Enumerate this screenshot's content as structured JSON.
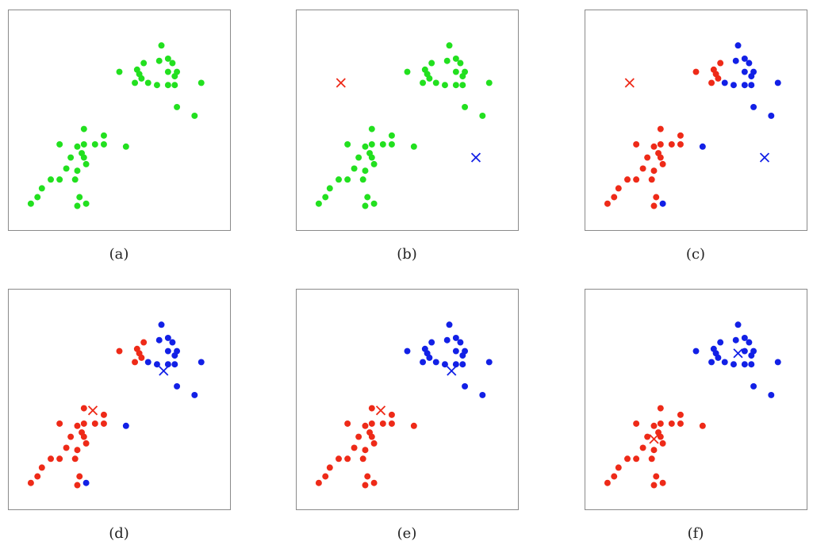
{
  "colors": {
    "green": "#22e01f",
    "red": "#ee2a18",
    "blue": "#1220e6"
  },
  "chart_data": [
    {
      "type": "scatter",
      "label": "(a)",
      "xlim": [
        0,
        10
      ],
      "ylim": [
        0,
        10
      ],
      "points": [
        [
          5.0,
          7.2,
          "green"
        ],
        [
          5.8,
          7.3,
          "green"
        ],
        [
          5.9,
          7.1,
          "green"
        ],
        [
          6.0,
          6.9,
          "green"
        ],
        [
          5.7,
          6.7,
          "green"
        ],
        [
          6.1,
          7.6,
          "green"
        ],
        [
          6.8,
          7.7,
          "green"
        ],
        [
          7.2,
          7.8,
          "green"
        ],
        [
          7.4,
          7.6,
          "green"
        ],
        [
          7.2,
          7.2,
          "green"
        ],
        [
          7.6,
          7.2,
          "green"
        ],
        [
          6.9,
          8.4,
          "green"
        ],
        [
          7.5,
          7.0,
          "green"
        ],
        [
          6.7,
          6.6,
          "green"
        ],
        [
          7.2,
          6.6,
          "green"
        ],
        [
          7.5,
          6.6,
          "green"
        ],
        [
          6.3,
          6.7,
          "green"
        ],
        [
          8.7,
          6.7,
          "green"
        ],
        [
          7.6,
          5.6,
          "green"
        ],
        [
          8.4,
          5.2,
          "green"
        ],
        [
          3.4,
          4.6,
          "green"
        ],
        [
          2.3,
          3.9,
          "green"
        ],
        [
          3.1,
          3.8,
          "green"
        ],
        [
          3.4,
          3.9,
          "green"
        ],
        [
          3.3,
          3.5,
          "green"
        ],
        [
          4.3,
          4.3,
          "green"
        ],
        [
          4.3,
          3.9,
          "green"
        ],
        [
          3.9,
          3.9,
          "green"
        ],
        [
          3.4,
          3.3,
          "green"
        ],
        [
          2.8,
          3.3,
          "green"
        ],
        [
          3.5,
          3.0,
          "green"
        ],
        [
          2.6,
          2.8,
          "green"
        ],
        [
          3.1,
          2.7,
          "green"
        ],
        [
          3.0,
          2.3,
          "green"
        ],
        [
          2.3,
          2.3,
          "green"
        ],
        [
          1.9,
          2.3,
          "green"
        ],
        [
          1.5,
          1.9,
          "green"
        ],
        [
          1.3,
          1.5,
          "green"
        ],
        [
          1.0,
          1.2,
          "green"
        ],
        [
          3.2,
          1.5,
          "green"
        ],
        [
          3.5,
          1.2,
          "green"
        ],
        [
          3.1,
          1.1,
          "green"
        ],
        [
          5.3,
          3.8,
          "green"
        ]
      ],
      "centroids": []
    },
    {
      "type": "scatter",
      "label": "(b)",
      "xlim": [
        0,
        10
      ],
      "ylim": [
        0,
        10
      ],
      "points": [
        [
          5.0,
          7.2,
          "green"
        ],
        [
          5.8,
          7.3,
          "green"
        ],
        [
          5.9,
          7.1,
          "green"
        ],
        [
          6.0,
          6.9,
          "green"
        ],
        [
          5.7,
          6.7,
          "green"
        ],
        [
          6.1,
          7.6,
          "green"
        ],
        [
          6.8,
          7.7,
          "green"
        ],
        [
          7.2,
          7.8,
          "green"
        ],
        [
          7.4,
          7.6,
          "green"
        ],
        [
          7.2,
          7.2,
          "green"
        ],
        [
          7.6,
          7.2,
          "green"
        ],
        [
          6.9,
          8.4,
          "green"
        ],
        [
          7.5,
          7.0,
          "green"
        ],
        [
          6.7,
          6.6,
          "green"
        ],
        [
          7.2,
          6.6,
          "green"
        ],
        [
          7.5,
          6.6,
          "green"
        ],
        [
          6.3,
          6.7,
          "green"
        ],
        [
          8.7,
          6.7,
          "green"
        ],
        [
          7.6,
          5.6,
          "green"
        ],
        [
          8.4,
          5.2,
          "green"
        ],
        [
          3.4,
          4.6,
          "green"
        ],
        [
          2.3,
          3.9,
          "green"
        ],
        [
          3.1,
          3.8,
          "green"
        ],
        [
          3.4,
          3.9,
          "green"
        ],
        [
          3.3,
          3.5,
          "green"
        ],
        [
          4.3,
          4.3,
          "green"
        ],
        [
          4.3,
          3.9,
          "green"
        ],
        [
          3.9,
          3.9,
          "green"
        ],
        [
          3.4,
          3.3,
          "green"
        ],
        [
          2.8,
          3.3,
          "green"
        ],
        [
          3.5,
          3.0,
          "green"
        ],
        [
          2.6,
          2.8,
          "green"
        ],
        [
          3.1,
          2.7,
          "green"
        ],
        [
          3.0,
          2.3,
          "green"
        ],
        [
          2.3,
          2.3,
          "green"
        ],
        [
          1.9,
          2.3,
          "green"
        ],
        [
          1.5,
          1.9,
          "green"
        ],
        [
          1.3,
          1.5,
          "green"
        ],
        [
          1.0,
          1.2,
          "green"
        ],
        [
          3.2,
          1.5,
          "green"
        ],
        [
          3.5,
          1.2,
          "green"
        ],
        [
          3.1,
          1.1,
          "green"
        ],
        [
          5.3,
          3.8,
          "green"
        ]
      ],
      "centroids": [
        [
          2.0,
          6.7,
          "red"
        ],
        [
          8.1,
          3.3,
          "blue"
        ]
      ]
    },
    {
      "type": "scatter",
      "label": "(c)",
      "xlim": [
        0,
        10
      ],
      "ylim": [
        0,
        10
      ],
      "points": [
        [
          5.0,
          7.2,
          "red"
        ],
        [
          5.8,
          7.3,
          "red"
        ],
        [
          5.9,
          7.1,
          "red"
        ],
        [
          6.0,
          6.9,
          "red"
        ],
        [
          5.7,
          6.7,
          "red"
        ],
        [
          6.1,
          7.6,
          "red"
        ],
        [
          6.8,
          7.7,
          "blue"
        ],
        [
          7.2,
          7.8,
          "blue"
        ],
        [
          7.4,
          7.6,
          "blue"
        ],
        [
          7.2,
          7.2,
          "blue"
        ],
        [
          7.6,
          7.2,
          "blue"
        ],
        [
          6.9,
          8.4,
          "blue"
        ],
        [
          7.5,
          7.0,
          "blue"
        ],
        [
          6.7,
          6.6,
          "blue"
        ],
        [
          7.2,
          6.6,
          "blue"
        ],
        [
          7.5,
          6.6,
          "blue"
        ],
        [
          6.3,
          6.7,
          "blue"
        ],
        [
          8.7,
          6.7,
          "blue"
        ],
        [
          7.6,
          5.6,
          "blue"
        ],
        [
          8.4,
          5.2,
          "blue"
        ],
        [
          3.4,
          4.6,
          "red"
        ],
        [
          2.3,
          3.9,
          "red"
        ],
        [
          3.1,
          3.8,
          "red"
        ],
        [
          3.4,
          3.9,
          "red"
        ],
        [
          3.3,
          3.5,
          "red"
        ],
        [
          4.3,
          4.3,
          "red"
        ],
        [
          4.3,
          3.9,
          "red"
        ],
        [
          3.9,
          3.9,
          "red"
        ],
        [
          3.4,
          3.3,
          "red"
        ],
        [
          2.8,
          3.3,
          "red"
        ],
        [
          3.5,
          3.0,
          "red"
        ],
        [
          2.6,
          2.8,
          "red"
        ],
        [
          3.1,
          2.7,
          "red"
        ],
        [
          3.0,
          2.3,
          "red"
        ],
        [
          2.3,
          2.3,
          "red"
        ],
        [
          1.9,
          2.3,
          "red"
        ],
        [
          1.5,
          1.9,
          "red"
        ],
        [
          1.3,
          1.5,
          "red"
        ],
        [
          1.0,
          1.2,
          "red"
        ],
        [
          3.2,
          1.5,
          "red"
        ],
        [
          3.5,
          1.2,
          "blue"
        ],
        [
          3.1,
          1.1,
          "red"
        ],
        [
          5.3,
          3.8,
          "blue"
        ]
      ],
      "centroids": [
        [
          2.0,
          6.7,
          "red"
        ],
        [
          8.1,
          3.3,
          "blue"
        ]
      ]
    },
    {
      "type": "scatter",
      "label": "(d)",
      "xlim": [
        0,
        10
      ],
      "ylim": [
        0,
        10
      ],
      "points": [
        [
          5.0,
          7.2,
          "red"
        ],
        [
          5.8,
          7.3,
          "red"
        ],
        [
          5.9,
          7.1,
          "red"
        ],
        [
          6.0,
          6.9,
          "red"
        ],
        [
          5.7,
          6.7,
          "red"
        ],
        [
          6.1,
          7.6,
          "red"
        ],
        [
          6.8,
          7.7,
          "blue"
        ],
        [
          7.2,
          7.8,
          "blue"
        ],
        [
          7.4,
          7.6,
          "blue"
        ],
        [
          7.2,
          7.2,
          "blue"
        ],
        [
          7.6,
          7.2,
          "blue"
        ],
        [
          6.9,
          8.4,
          "blue"
        ],
        [
          7.5,
          7.0,
          "blue"
        ],
        [
          6.7,
          6.6,
          "blue"
        ],
        [
          7.2,
          6.6,
          "blue"
        ],
        [
          7.5,
          6.6,
          "blue"
        ],
        [
          6.3,
          6.7,
          "blue"
        ],
        [
          8.7,
          6.7,
          "blue"
        ],
        [
          7.6,
          5.6,
          "blue"
        ],
        [
          8.4,
          5.2,
          "blue"
        ],
        [
          3.4,
          4.6,
          "red"
        ],
        [
          2.3,
          3.9,
          "red"
        ],
        [
          3.1,
          3.8,
          "red"
        ],
        [
          3.4,
          3.9,
          "red"
        ],
        [
          3.3,
          3.5,
          "red"
        ],
        [
          4.3,
          4.3,
          "red"
        ],
        [
          4.3,
          3.9,
          "red"
        ],
        [
          3.9,
          3.9,
          "red"
        ],
        [
          3.4,
          3.3,
          "red"
        ],
        [
          2.8,
          3.3,
          "red"
        ],
        [
          3.5,
          3.0,
          "red"
        ],
        [
          2.6,
          2.8,
          "red"
        ],
        [
          3.1,
          2.7,
          "red"
        ],
        [
          3.0,
          2.3,
          "red"
        ],
        [
          2.3,
          2.3,
          "red"
        ],
        [
          1.9,
          2.3,
          "red"
        ],
        [
          1.5,
          1.9,
          "red"
        ],
        [
          1.3,
          1.5,
          "red"
        ],
        [
          1.0,
          1.2,
          "red"
        ],
        [
          3.2,
          1.5,
          "red"
        ],
        [
          3.5,
          1.2,
          "blue"
        ],
        [
          3.1,
          1.1,
          "red"
        ],
        [
          5.3,
          3.8,
          "blue"
        ]
      ],
      "centroids": [
        [
          3.8,
          4.5,
          "red"
        ],
        [
          7.0,
          6.3,
          "blue"
        ]
      ]
    },
    {
      "type": "scatter",
      "label": "(e)",
      "xlim": [
        0,
        10
      ],
      "ylim": [
        0,
        10
      ],
      "points": [
        [
          5.0,
          7.2,
          "blue"
        ],
        [
          5.8,
          7.3,
          "blue"
        ],
        [
          5.9,
          7.1,
          "blue"
        ],
        [
          6.0,
          6.9,
          "blue"
        ],
        [
          5.7,
          6.7,
          "blue"
        ],
        [
          6.1,
          7.6,
          "blue"
        ],
        [
          6.8,
          7.7,
          "blue"
        ],
        [
          7.2,
          7.8,
          "blue"
        ],
        [
          7.4,
          7.6,
          "blue"
        ],
        [
          7.2,
          7.2,
          "blue"
        ],
        [
          7.6,
          7.2,
          "blue"
        ],
        [
          6.9,
          8.4,
          "blue"
        ],
        [
          7.5,
          7.0,
          "blue"
        ],
        [
          6.7,
          6.6,
          "blue"
        ],
        [
          7.2,
          6.6,
          "blue"
        ],
        [
          7.5,
          6.6,
          "blue"
        ],
        [
          6.3,
          6.7,
          "blue"
        ],
        [
          8.7,
          6.7,
          "blue"
        ],
        [
          7.6,
          5.6,
          "blue"
        ],
        [
          8.4,
          5.2,
          "blue"
        ],
        [
          3.4,
          4.6,
          "red"
        ],
        [
          2.3,
          3.9,
          "red"
        ],
        [
          3.1,
          3.8,
          "red"
        ],
        [
          3.4,
          3.9,
          "red"
        ],
        [
          3.3,
          3.5,
          "red"
        ],
        [
          4.3,
          4.3,
          "red"
        ],
        [
          4.3,
          3.9,
          "red"
        ],
        [
          3.9,
          3.9,
          "red"
        ],
        [
          3.4,
          3.3,
          "red"
        ],
        [
          2.8,
          3.3,
          "red"
        ],
        [
          3.5,
          3.0,
          "red"
        ],
        [
          2.6,
          2.8,
          "red"
        ],
        [
          3.1,
          2.7,
          "red"
        ],
        [
          3.0,
          2.3,
          "red"
        ],
        [
          2.3,
          2.3,
          "red"
        ],
        [
          1.9,
          2.3,
          "red"
        ],
        [
          1.5,
          1.9,
          "red"
        ],
        [
          1.3,
          1.5,
          "red"
        ],
        [
          1.0,
          1.2,
          "red"
        ],
        [
          3.2,
          1.5,
          "red"
        ],
        [
          3.5,
          1.2,
          "red"
        ],
        [
          3.1,
          1.1,
          "red"
        ],
        [
          5.3,
          3.8,
          "red"
        ]
      ],
      "centroids": [
        [
          3.8,
          4.5,
          "red"
        ],
        [
          7.0,
          6.3,
          "blue"
        ]
      ]
    },
    {
      "type": "scatter",
      "label": "(f)",
      "xlim": [
        0,
        10
      ],
      "ylim": [
        0,
        10
      ],
      "points": [
        [
          5.0,
          7.2,
          "blue"
        ],
        [
          5.8,
          7.3,
          "blue"
        ],
        [
          5.9,
          7.1,
          "blue"
        ],
        [
          6.0,
          6.9,
          "blue"
        ],
        [
          5.7,
          6.7,
          "blue"
        ],
        [
          6.1,
          7.6,
          "blue"
        ],
        [
          6.8,
          7.7,
          "blue"
        ],
        [
          7.2,
          7.8,
          "blue"
        ],
        [
          7.4,
          7.6,
          "blue"
        ],
        [
          7.2,
          7.2,
          "blue"
        ],
        [
          7.6,
          7.2,
          "blue"
        ],
        [
          6.9,
          8.4,
          "blue"
        ],
        [
          7.5,
          7.0,
          "blue"
        ],
        [
          6.7,
          6.6,
          "blue"
        ],
        [
          7.2,
          6.6,
          "blue"
        ],
        [
          7.5,
          6.6,
          "blue"
        ],
        [
          6.3,
          6.7,
          "blue"
        ],
        [
          8.7,
          6.7,
          "blue"
        ],
        [
          7.6,
          5.6,
          "blue"
        ],
        [
          8.4,
          5.2,
          "blue"
        ],
        [
          3.4,
          4.6,
          "red"
        ],
        [
          2.3,
          3.9,
          "red"
        ],
        [
          3.1,
          3.8,
          "red"
        ],
        [
          3.4,
          3.9,
          "red"
        ],
        [
          3.3,
          3.5,
          "red"
        ],
        [
          4.3,
          4.3,
          "red"
        ],
        [
          4.3,
          3.9,
          "red"
        ],
        [
          3.9,
          3.9,
          "red"
        ],
        [
          3.4,
          3.3,
          "red"
        ],
        [
          2.8,
          3.3,
          "red"
        ],
        [
          3.5,
          3.0,
          "red"
        ],
        [
          2.6,
          2.8,
          "red"
        ],
        [
          3.1,
          2.7,
          "red"
        ],
        [
          3.0,
          2.3,
          "red"
        ],
        [
          2.3,
          2.3,
          "red"
        ],
        [
          1.9,
          2.3,
          "red"
        ],
        [
          1.5,
          1.9,
          "red"
        ],
        [
          1.3,
          1.5,
          "red"
        ],
        [
          1.0,
          1.2,
          "red"
        ],
        [
          3.2,
          1.5,
          "red"
        ],
        [
          3.5,
          1.2,
          "red"
        ],
        [
          3.1,
          1.1,
          "red"
        ],
        [
          5.3,
          3.8,
          "red"
        ]
      ],
      "centroids": [
        [
          3.1,
          3.2,
          "red"
        ],
        [
          6.9,
          7.1,
          "blue"
        ]
      ]
    }
  ]
}
